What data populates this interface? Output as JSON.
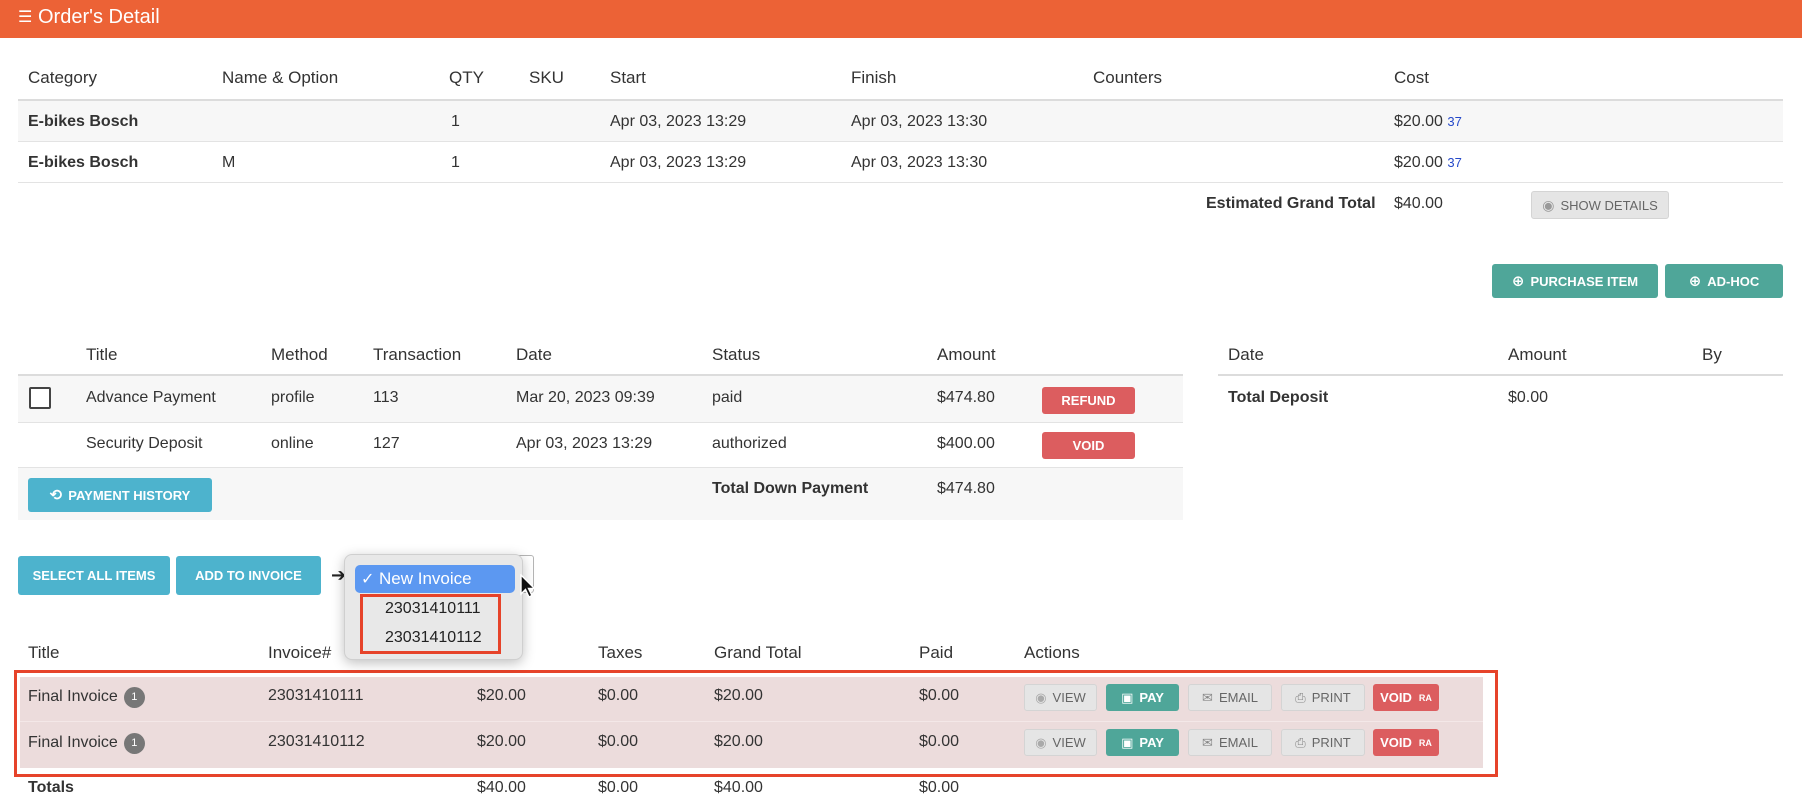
{
  "header": {
    "title": "Order's Detail",
    "icon": "list-icon"
  },
  "items_table": {
    "columns": [
      "Category",
      "Name & Option",
      "QTY",
      "SKU",
      "Start",
      "Finish",
      "Counters",
      "Cost"
    ],
    "rows": [
      {
        "category": "E-bikes Bosch",
        "name": "",
        "qty": "1",
        "sku": "",
        "start": "Apr 03, 2023 13:29",
        "finish": "Apr 03, 2023 13:30",
        "counters": "",
        "cost": "$20.00",
        "cost_ref": "37"
      },
      {
        "category": "E-bikes Bosch",
        "name": "M",
        "qty": "1",
        "sku": "",
        "start": "Apr 03, 2023 13:29",
        "finish": "Apr 03, 2023 13:30",
        "counters": "",
        "cost": "$20.00",
        "cost_ref": "37"
      }
    ],
    "grand_total_label": "Estimated Grand Total",
    "grand_total_value": "$40.00",
    "show_details_label": "SHOW DETAILS"
  },
  "actions": {
    "purchase_item": "PURCHASE ITEM",
    "ad_hoc": "AD-HOC"
  },
  "payments_table": {
    "columns": [
      "Title",
      "Method",
      "Transaction",
      "Date",
      "Status",
      "Amount"
    ],
    "rows": [
      {
        "title": "Advance Payment",
        "method": "profile",
        "transaction": "113",
        "date": "Mar 20, 2023 09:39",
        "status": "paid",
        "amount": "$474.80",
        "action": "REFUND"
      },
      {
        "title": "Security Deposit",
        "method": "online",
        "transaction": "127",
        "date": "Apr 03, 2023 13:29",
        "status": "authorized",
        "amount": "$400.00",
        "action": "VOID"
      }
    ],
    "payment_history_label": "PAYMENT HISTORY",
    "total_down_label": "Total Down Payment",
    "total_down_value": "$474.80"
  },
  "deposit_table": {
    "columns": [
      "Date",
      "Amount",
      "By"
    ],
    "total_label": "Total Deposit",
    "total_value": "$0.00"
  },
  "invoice_controls": {
    "select_all": "SELECT ALL ITEMS",
    "add_to_invoice": "ADD TO INVOICE",
    "dropdown_options": [
      "New Invoice",
      "23031410111",
      "23031410112"
    ],
    "selected": "New Invoice"
  },
  "invoices_table": {
    "columns": [
      "Title",
      "Invoice#",
      "Taxes",
      "Grand Total",
      "Paid",
      "Actions"
    ],
    "rows": [
      {
        "title": "Final Invoice",
        "badge": "1",
        "invoice": "23031410111",
        "subtotal": "$20.00",
        "taxes": "$0.00",
        "grand_total": "$20.00",
        "paid": "$0.00"
      },
      {
        "title": "Final Invoice",
        "badge": "1",
        "invoice": "23031410112",
        "subtotal": "$20.00",
        "taxes": "$0.00",
        "grand_total": "$20.00",
        "paid": "$0.00"
      }
    ],
    "action_labels": {
      "view": "VIEW",
      "pay": "PAY",
      "email": "EMAIL",
      "print": "PRINT",
      "void": "VOID",
      "void_sup": "RA"
    },
    "totals": {
      "label": "Totals",
      "subtotal": "$40.00",
      "taxes": "$0.00",
      "grand_total": "$40.00",
      "paid": "$0.00"
    }
  },
  "colors": {
    "header": "#ec6236",
    "teal": "#4fa699",
    "blue": "#4db3cd",
    "red": "#dc5d5f",
    "highlight_box": "#e6432a",
    "dropdown_selected": "#5c98f1"
  }
}
